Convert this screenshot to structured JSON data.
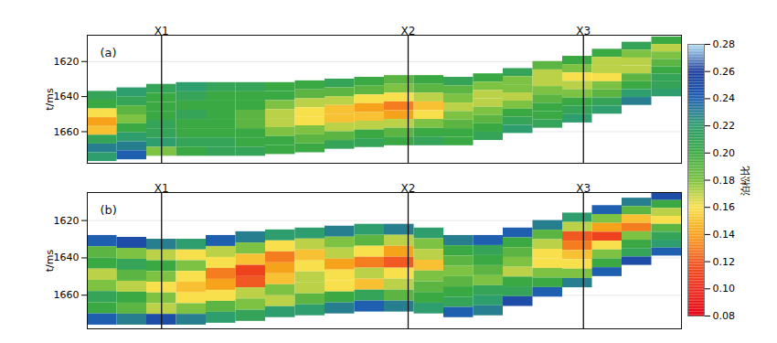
{
  "chart_data": {
    "type": "heatmap",
    "ylabel": "t/ms",
    "ylim": [
      1678,
      1605
    ],
    "yticks": [
      1620,
      1640,
      1660
    ],
    "grid": true,
    "tick_labels": "y",
    "xlim": [
      0,
      20
    ],
    "x": [
      0,
      1,
      2,
      3,
      4,
      5,
      6,
      7,
      8,
      9,
      10,
      11,
      12,
      13,
      14,
      15,
      16,
      17,
      18,
      19
    ],
    "wells": [
      {
        "name": "X1",
        "x": 2.5
      },
      {
        "name": "X2",
        "x": 10.8
      },
      {
        "name": "X3",
        "x": 16.7
      }
    ],
    "panels": [
      {
        "title": "(a)",
        "top": [
          1637,
          1635,
          1633,
          1632,
          1632,
          1632,
          1632,
          1631,
          1630,
          1629,
          1628,
          1628,
          1629,
          1627,
          1624,
          1620,
          1617,
          1613,
          1609,
          1606
        ],
        "bottom": [
          1677,
          1676,
          1674,
          1674,
          1674,
          1674,
          1673,
          1672,
          1670,
          1669,
          1668,
          1668,
          1668,
          1665,
          1661,
          1658,
          1655,
          1650,
          1645,
          1640
        ],
        "cells": [
          [
            0.21,
            0.22,
            0.21,
            0.22,
            0.21,
            0.21,
            0.2,
            0.2,
            0.21,
            0.2,
            0.19,
            0.2,
            0.21,
            0.2,
            0.21,
            0.19,
            0.2,
            0.2,
            0.21,
            0.2
          ],
          [
            0.2,
            0.21,
            0.2,
            0.21,
            0.2,
            0.2,
            0.2,
            0.19,
            0.19,
            0.19,
            0.18,
            0.19,
            0.19,
            0.18,
            0.18,
            0.17,
            0.18,
            0.17,
            0.18,
            0.17
          ],
          [
            0.16,
            0.19,
            0.2,
            0.2,
            0.2,
            0.2,
            0.18,
            0.17,
            0.17,
            0.16,
            0.16,
            0.17,
            0.18,
            0.17,
            0.18,
            0.17,
            0.16,
            0.17,
            0.17,
            0.18
          ],
          [
            0.14,
            0.18,
            0.2,
            0.21,
            0.2,
            0.19,
            0.17,
            0.16,
            0.15,
            0.14,
            0.13,
            0.15,
            0.17,
            0.17,
            0.17,
            0.18,
            0.17,
            0.16,
            0.17,
            0.19
          ],
          [
            0.15,
            0.2,
            0.21,
            0.2,
            0.2,
            0.19,
            0.17,
            0.16,
            0.15,
            0.15,
            0.14,
            0.16,
            0.18,
            0.18,
            0.18,
            0.19,
            0.18,
            0.18,
            0.19,
            0.2
          ],
          [
            0.21,
            0.22,
            0.21,
            0.2,
            0.2,
            0.2,
            0.18,
            0.18,
            0.17,
            0.17,
            0.17,
            0.18,
            0.19,
            0.19,
            0.2,
            0.2,
            0.2,
            0.19,
            0.2,
            0.21
          ],
          [
            0.23,
            0.23,
            0.22,
            0.21,
            0.21,
            0.2,
            0.2,
            0.19,
            0.19,
            0.2,
            0.19,
            0.2,
            0.2,
            0.2,
            0.21,
            0.2,
            0.21,
            0.21,
            0.22,
            0.21
          ],
          [
            0.22,
            0.24,
            0.18,
            0.2,
            0.21,
            0.21,
            0.2,
            0.2,
            0.21,
            0.21,
            0.2,
            0.21,
            0.2,
            0.21,
            0.22,
            0.21,
            0.22,
            0.22,
            0.23,
            0.22
          ]
        ]
      },
      {
        "title": "(b)",
        "top": [
          1628,
          1629,
          1630,
          1630,
          1628,
          1626,
          1625,
          1624,
          1623,
          1622,
          1622,
          1624,
          1628,
          1628,
          1624,
          1620,
          1616,
          1612,
          1608,
          1605
        ],
        "bottom": [
          1676,
          1676,
          1676,
          1676,
          1675,
          1674,
          1672,
          1671,
          1670,
          1669,
          1669,
          1670,
          1672,
          1671,
          1666,
          1661,
          1656,
          1650,
          1644,
          1639
        ],
        "cells": [
          [
            0.24,
            0.25,
            0.23,
            0.22,
            0.24,
            0.23,
            0.22,
            0.22,
            0.23,
            0.22,
            0.23,
            0.22,
            0.23,
            0.24,
            0.24,
            0.23,
            0.22,
            0.24,
            0.23,
            0.25
          ],
          [
            0.19,
            0.18,
            0.17,
            0.16,
            0.17,
            0.18,
            0.16,
            0.17,
            0.18,
            0.19,
            0.17,
            0.18,
            0.2,
            0.21,
            0.2,
            0.19,
            0.17,
            0.18,
            0.19,
            0.2
          ],
          [
            0.2,
            0.21,
            0.2,
            0.18,
            0.16,
            0.15,
            0.13,
            0.15,
            0.17,
            0.16,
            0.14,
            0.17,
            0.19,
            0.2,
            0.19,
            0.17,
            0.12,
            0.14,
            0.15,
            0.17
          ],
          [
            0.17,
            0.19,
            0.18,
            0.16,
            0.13,
            0.11,
            0.14,
            0.16,
            0.14,
            0.13,
            0.12,
            0.15,
            0.18,
            0.19,
            0.18,
            0.16,
            0.13,
            0.11,
            0.13,
            0.16
          ],
          [
            0.18,
            0.17,
            0.16,
            0.15,
            0.14,
            0.12,
            0.15,
            0.17,
            0.16,
            0.17,
            0.16,
            0.18,
            0.19,
            0.18,
            0.17,
            0.16,
            0.15,
            0.16,
            0.18,
            0.19
          ],
          [
            0.21,
            0.2,
            0.18,
            0.16,
            0.16,
            0.17,
            0.18,
            0.17,
            0.16,
            0.15,
            0.17,
            0.19,
            0.2,
            0.21,
            0.2,
            0.18,
            0.16,
            0.18,
            0.2,
            0.21
          ],
          [
            0.2,
            0.19,
            0.17,
            0.18,
            0.19,
            0.18,
            0.17,
            0.19,
            0.2,
            0.21,
            0.19,
            0.2,
            0.21,
            0.22,
            0.21,
            0.2,
            0.18,
            0.2,
            0.21,
            0.22
          ],
          [
            0.24,
            0.23,
            0.25,
            0.23,
            0.22,
            0.21,
            0.22,
            0.22,
            0.23,
            0.24,
            0.23,
            0.22,
            0.24,
            0.23,
            0.25,
            0.24,
            0.23,
            0.24,
            0.25,
            0.24
          ]
        ]
      }
    ],
    "colorbar": {
      "label": "泊松比",
      "range": [
        0.08,
        0.28
      ],
      "ticks": [
        0.08,
        {
          "value": 0.1,
          "label": "0.10"
        },
        0.12,
        0.14,
        0.16,
        0.18,
        {
          "value": 0.2,
          "label": "0.20"
        },
        0.22,
        0.24,
        0.26,
        0.28
      ],
      "colors": [
        "#e60012",
        "#ec2a1c",
        "#f05a22",
        "#f7a21b",
        "#f8e04c",
        "#7dc243",
        "#3aa843",
        "#2f9e6e",
        "#1f5fb0",
        "#1a3a9c",
        "#b8e4f2"
      ]
    }
  }
}
